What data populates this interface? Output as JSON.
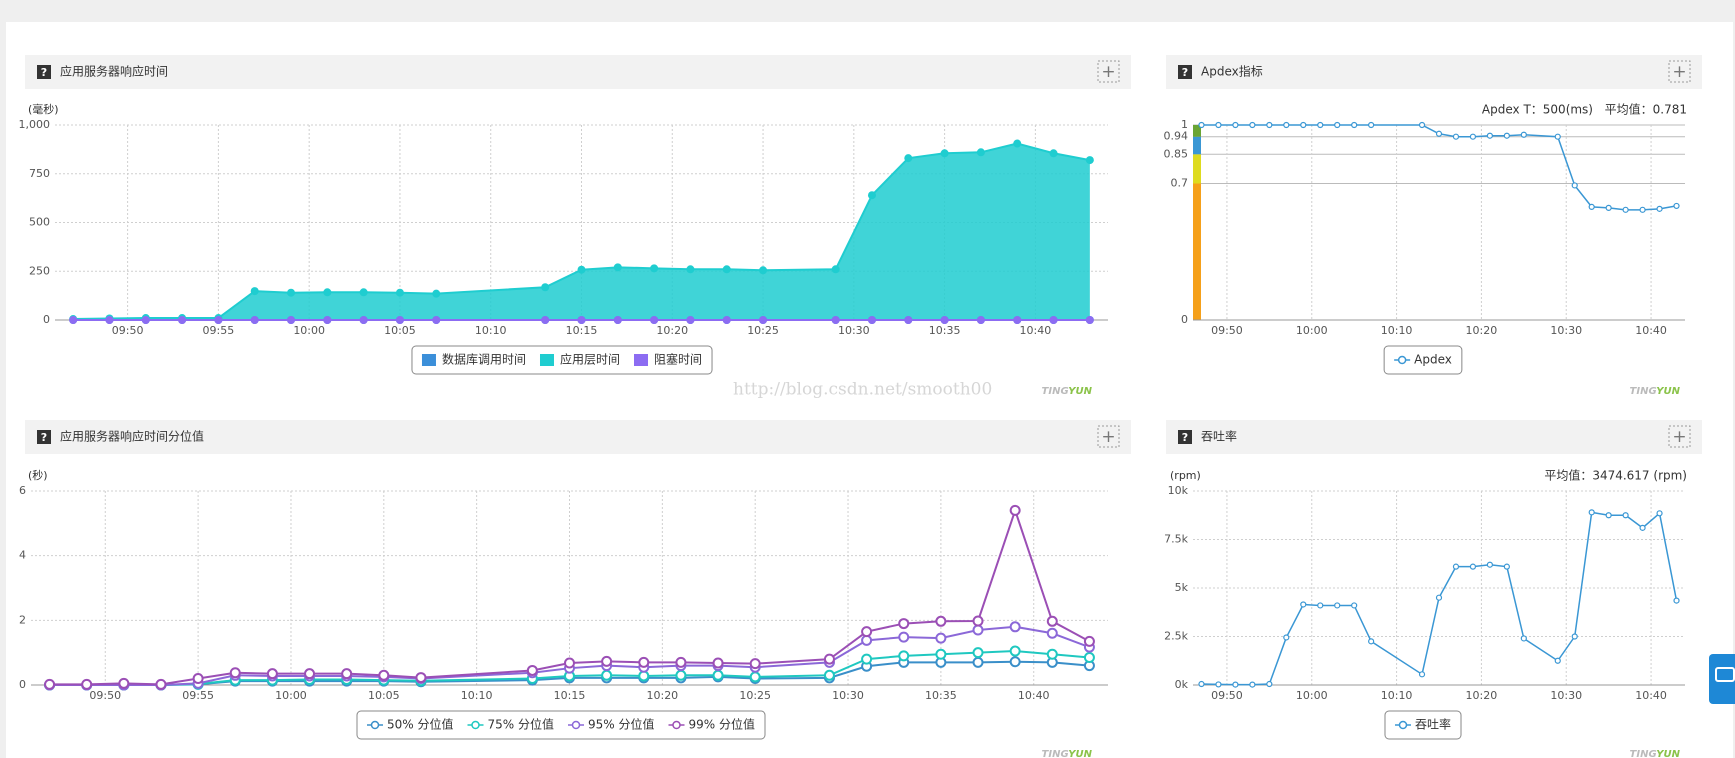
{
  "icon_help": "?",
  "icon_add": "+",
  "watermark": "http://blog.csdn.net/smooth00",
  "brand": [
    "TING",
    "YUN"
  ],
  "chart_data": [
    {
      "type": "area",
      "title": "应用服务器响应时间",
      "unit": "(毫秒)",
      "x": [
        "09:47",
        "09:49",
        "09:51",
        "09:53",
        "09:55",
        "09:57",
        "09:59",
        "10:01",
        "10:03",
        "10:05",
        "10:07",
        "10:13",
        "10:15",
        "10:17",
        "10:19",
        "10:21",
        "10:23",
        "10:25",
        "10:29",
        "10:31",
        "10:33",
        "10:35",
        "10:37",
        "10:39",
        "10:41",
        "10:43"
      ],
      "xlim": [
        "09:46",
        "10:44"
      ],
      "xticks": [
        "09:50",
        "09:55",
        "10:00",
        "10:05",
        "10:10",
        "10:15",
        "10:20",
        "10:25",
        "10:30",
        "10:35",
        "10:40"
      ],
      "ylim": [
        0,
        1000
      ],
      "yticks": [
        0,
        250,
        500,
        750,
        {
          "value": 1000,
          "label": "1,000"
        }
      ],
      "grid": true,
      "legend": "bottom",
      "marker": "filled",
      "series": [
        {
          "name": "数据库调用时间",
          "color": "#3b8fd9",
          "values": [
            0,
            0,
            0,
            0,
            0,
            0,
            0,
            0,
            0,
            0,
            0,
            0,
            0,
            0,
            0,
            0,
            0,
            0,
            0,
            0,
            0,
            0,
            0,
            0,
            0,
            0
          ]
        },
        {
          "name": "应用层时间",
          "color": "#1fcdd0",
          "values": [
            5,
            8,
            10,
            10,
            10,
            148,
            140,
            142,
            142,
            140,
            135,
            168,
            258,
            270,
            265,
            260,
            260,
            255,
            260,
            640,
            830,
            855,
            860,
            905,
            855,
            820
          ]
        },
        {
          "name": "阻塞时间",
          "color": "#8c6cf2",
          "values": [
            0,
            0,
            0,
            0,
            0,
            0,
            0,
            0,
            0,
            0,
            0,
            0,
            0,
            0,
            0,
            0,
            0,
            0,
            0,
            0,
            0,
            0,
            0,
            0,
            0,
            0
          ]
        }
      ]
    },
    {
      "type": "line",
      "title": "Apdex指标",
      "annotations": [
        "Apdex T：500(ms)",
        "平均值：0.781"
      ],
      "x": [
        "09:47",
        "09:49",
        "09:51",
        "09:53",
        "09:55",
        "09:57",
        "09:59",
        "10:01",
        "10:03",
        "10:05",
        "10:07",
        "10:13",
        "10:15",
        "10:17",
        "10:19",
        "10:21",
        "10:23",
        "10:25",
        "10:29",
        "10:31",
        "10:33",
        "10:35",
        "10:37",
        "10:39",
        "10:41",
        "10:43"
      ],
      "xlim": [
        "09:46",
        "10:44"
      ],
      "xticks": [
        "09:50",
        "10:00",
        "10:10",
        "10:20",
        "10:30",
        "10:40"
      ],
      "ylim": [
        0,
        1
      ],
      "yticks": [
        0,
        0.7,
        0.85,
        0.94,
        1
      ],
      "band_colors": [
        "#f5a01a",
        "#dedb1f",
        "#3a97d4",
        "#6aa534"
      ],
      "grid": true,
      "legend": "bottom",
      "marker": "hollow-small",
      "series": [
        {
          "name": "Apdex",
          "color": "#3a97d4",
          "values": [
            1,
            1,
            1,
            1,
            1,
            1,
            1,
            1,
            1,
            1,
            1,
            1,
            0.955,
            0.94,
            0.94,
            0.945,
            0.945,
            0.95,
            0.94,
            0.69,
            0.58,
            0.575,
            0.565,
            0.565,
            0.57,
            0.585
          ]
        }
      ]
    },
    {
      "type": "line",
      "title": "应用服务器响应时间分位值",
      "unit": "(秒)",
      "x": [
        "09:47",
        "09:49",
        "09:51",
        "09:53",
        "09:55",
        "09:57",
        "09:59",
        "10:01",
        "10:03",
        "10:05",
        "10:07",
        "10:13",
        "10:15",
        "10:17",
        "10:19",
        "10:21",
        "10:23",
        "10:25",
        "10:29",
        "10:31",
        "10:33",
        "10:35",
        "10:37",
        "10:39",
        "10:41",
        "10:43"
      ],
      "xlim": [
        "09:46",
        "10:44"
      ],
      "xticks": [
        "09:50",
        "09:55",
        "10:00",
        "10:05",
        "10:10",
        "10:15",
        "10:20",
        "10:25",
        "10:30",
        "10:35",
        "10:40"
      ],
      "ylim": [
        0,
        6
      ],
      "yticks": [
        0,
        2,
        4,
        6
      ],
      "grid": true,
      "legend": "bottom",
      "marker": "hollow",
      "series": [
        {
          "name": "50% 分位值",
          "color": "#3a8fc9",
          "values": [
            0,
            0,
            0,
            0,
            0.02,
            0.12,
            0.12,
            0.12,
            0.12,
            0.12,
            0.1,
            0.15,
            0.22,
            0.22,
            0.22,
            0.22,
            0.25,
            0.2,
            0.22,
            0.58,
            0.7,
            0.7,
            0.7,
            0.72,
            0.7,
            0.6
          ]
        },
        {
          "name": "75% 分位值",
          "color": "#1fc8c0",
          "values": [
            0,
            0,
            0,
            0,
            0.03,
            0.15,
            0.15,
            0.17,
            0.17,
            0.15,
            0.13,
            0.2,
            0.28,
            0.3,
            0.28,
            0.3,
            0.3,
            0.25,
            0.3,
            0.8,
            0.9,
            0.95,
            1.0,
            1.05,
            0.95,
            0.85
          ]
        },
        {
          "name": "95% 分位值",
          "color": "#8b68d8",
          "values": [
            0,
            0,
            0,
            0,
            0.05,
            0.3,
            0.28,
            0.28,
            0.28,
            0.25,
            0.2,
            0.38,
            0.52,
            0.6,
            0.55,
            0.6,
            0.6,
            0.55,
            0.7,
            1.38,
            1.48,
            1.45,
            1.7,
            1.8,
            1.6,
            1.17
          ]
        },
        {
          "name": "99% 分位值",
          "color": "#9b4fb5",
          "values": [
            0.02,
            0.02,
            0.05,
            0.02,
            0.2,
            0.38,
            0.35,
            0.35,
            0.35,
            0.3,
            0.23,
            0.45,
            0.68,
            0.73,
            0.7,
            0.7,
            0.68,
            0.66,
            0.8,
            1.65,
            1.9,
            1.97,
            1.98,
            5.4,
            1.97,
            1.35
          ]
        }
      ]
    },
    {
      "type": "line",
      "title": "吞吐率",
      "unit": "(rpm)",
      "annotations": [
        "平均值：3474.617 (rpm)"
      ],
      "x": [
        "09:47",
        "09:49",
        "09:51",
        "09:53",
        "09:55",
        "09:57",
        "09:59",
        "10:01",
        "10:03",
        "10:05",
        "10:07",
        "10:13",
        "10:15",
        "10:17",
        "10:19",
        "10:21",
        "10:23",
        "10:25",
        "10:29",
        "10:31",
        "10:33",
        "10:35",
        "10:37",
        "10:39",
        "10:41",
        "10:43"
      ],
      "xlim": [
        "09:46",
        "10:44"
      ],
      "xticks": [
        "09:50",
        "10:00",
        "10:10",
        "10:20",
        "10:30",
        "10:40"
      ],
      "ylim": [
        0,
        10000
      ],
      "yticks": [
        {
          "value": 0,
          "label": "0k"
        },
        {
          "value": 2500,
          "label": "2.5k"
        },
        {
          "value": 5000,
          "label": "5k"
        },
        {
          "value": 7500,
          "label": "7.5k"
        },
        {
          "value": 10000,
          "label": "10k"
        }
      ],
      "grid": true,
      "legend": "bottom",
      "marker": "hollow-small",
      "series": [
        {
          "name": "吞吐率",
          "color": "#3a97d4",
          "values": [
            50,
            30,
            20,
            20,
            50,
            2450,
            4150,
            4100,
            4100,
            4100,
            2250,
            550,
            4500,
            6100,
            6100,
            6200,
            6100,
            2400,
            1250,
            2500,
            8900,
            8750,
            8750,
            8100,
            8850,
            4350
          ]
        }
      ]
    }
  ]
}
